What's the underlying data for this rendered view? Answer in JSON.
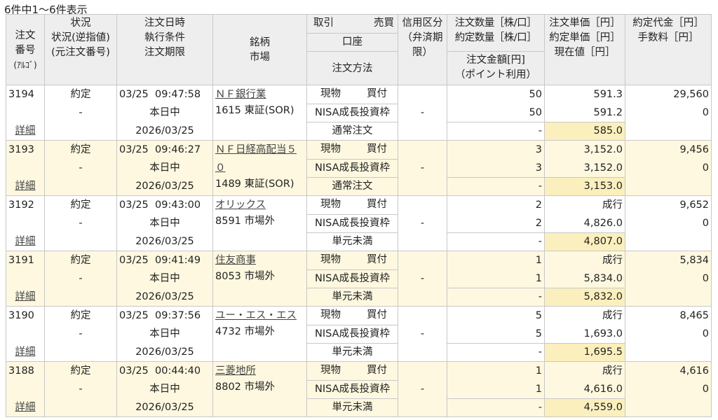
{
  "summary": "6件中1〜6件表示",
  "header": {
    "order_no": [
      "注文",
      "番号",
      "(ｱﾙｺﾞ)"
    ],
    "status": [
      "状況",
      "状況(逆指値)",
      "(元注文番号)"
    ],
    "datetime": [
      "注文日時",
      "執行条件",
      "注文期限"
    ],
    "stock": [
      "銘柄",
      "市場"
    ],
    "trade": "取引",
    "side": "売買",
    "account": "口座",
    "method": "注文方法",
    "margin": [
      "信用区分",
      "（弁済期",
      "限）"
    ],
    "qty": [
      "注文数量［株/口］",
      "約定数量［株/口］"
    ],
    "amount": [
      "注文金額[円]",
      "（ポイント利用）"
    ],
    "price": [
      "注文単価［円］",
      "約定単価［円］",
      "現在値［円］"
    ],
    "value": [
      "約定代金［円］",
      "手数料［円］"
    ]
  },
  "orders": [
    {
      "no": "3194",
      "status": "約定",
      "status2": "-",
      "detail": "詳細",
      "time": "03/25  09:47:58",
      "cond": "本日中",
      "expiry": "2026/03/25",
      "name": "ＮＦ銀行業",
      "market": "1615 東証(SOR)",
      "trade": "現物",
      "side": "買付",
      "account": "NISA成長投資枠",
      "method": "通常注文",
      "margin": "-",
      "qty": "50",
      "filled_qty": "50",
      "amount": "-",
      "order_price": "591.3",
      "filled_price": "591.2",
      "current": "585.0",
      "value": "29,560",
      "fee": "0"
    },
    {
      "no": "3193",
      "status": "約定",
      "status2": "-",
      "detail": "詳細",
      "time": "03/25  09:46:27",
      "cond": "本日中",
      "expiry": "2026/03/25",
      "name": "ＮＦ日経高配当５０",
      "market": "1489 東証(SOR)",
      "trade": "現物",
      "side": "買付",
      "account": "NISA成長投資枠",
      "method": "通常注文",
      "margin": "-",
      "qty": "3",
      "filled_qty": "3",
      "amount": "-",
      "order_price": "3,152.0",
      "filled_price": "3,152.0",
      "current": "3,153.0",
      "value": "9,456",
      "fee": "0"
    },
    {
      "no": "3192",
      "status": "約定",
      "status2": "-",
      "detail": "詳細",
      "time": "03/25  09:43:00",
      "cond": "本日中",
      "expiry": "2026/03/25",
      "name": "オリックス",
      "market": "8591 市場外",
      "trade": "現物",
      "side": "買付",
      "account": "NISA成長投資枠",
      "method": "単元未満",
      "margin": "-",
      "qty": "2",
      "filled_qty": "2",
      "amount": "-",
      "order_price": "成行",
      "filled_price": "4,826.0",
      "current": "4,807.0",
      "value": "9,652",
      "fee": "0"
    },
    {
      "no": "3191",
      "status": "約定",
      "status2": "-",
      "detail": "詳細",
      "time": "03/25  09:41:49",
      "cond": "本日中",
      "expiry": "2026/03/25",
      "name": "住友商事",
      "market": "8053 市場外",
      "trade": "現物",
      "side": "買付",
      "account": "NISA成長投資枠",
      "method": "単元未満",
      "margin": "-",
      "qty": "1",
      "filled_qty": "1",
      "amount": "-",
      "order_price": "成行",
      "filled_price": "5,834.0",
      "current": "5,832.0",
      "value": "5,834",
      "fee": "0"
    },
    {
      "no": "3190",
      "status": "約定",
      "status2": "-",
      "detail": "詳細",
      "time": "03/25  09:37:56",
      "cond": "本日中",
      "expiry": "2026/03/25",
      "name": "ユー・エス・エス",
      "market": "4732 市場外",
      "trade": "現物",
      "side": "買付",
      "account": "NISA成長投資枠",
      "method": "単元未満",
      "margin": "-",
      "qty": "5",
      "filled_qty": "5",
      "amount": "-",
      "order_price": "成行",
      "filled_price": "1,693.0",
      "current": "1,695.5",
      "value": "8,465",
      "fee": "0"
    },
    {
      "no": "3188",
      "status": "約定",
      "status2": "-",
      "detail": "詳細",
      "time": "03/25  00:44:40",
      "cond": "本日中",
      "expiry": "2026/03/25",
      "name": "三菱地所",
      "market": "8802 市場外",
      "trade": "現物",
      "side": "買付",
      "account": "NISA成長投資枠",
      "method": "単元未満",
      "margin": "-",
      "qty": "1",
      "filled_qty": "1",
      "amount": "-",
      "order_price": "成行",
      "filled_price": "4,616.0",
      "current": "4,559.0",
      "value": "4,616",
      "fee": "0"
    }
  ],
  "colors": {
    "alt_row": "#fdf8df",
    "current_price_highlight": "#fbf0bd",
    "header_bg": "#eeeeee"
  }
}
